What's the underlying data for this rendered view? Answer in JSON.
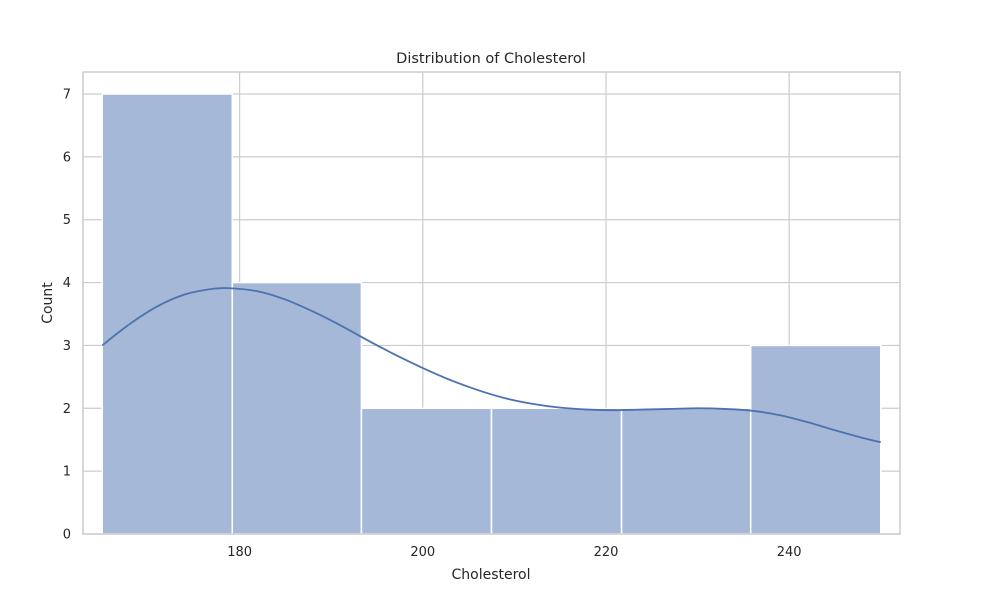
{
  "chart_data": {
    "type": "bar",
    "title": "Distribution of Cholesterol",
    "xlabel": "Cholesterol",
    "ylabel": "Count",
    "xlim": [
      162.9,
      252.1
    ],
    "ylim": [
      0,
      7.35
    ],
    "xticks": [
      180,
      200,
      220,
      240
    ],
    "yticks": [
      0,
      1,
      2,
      3,
      4,
      5,
      6,
      7
    ],
    "grid": true,
    "bins": [
      {
        "start": 165.0,
        "end": 179.2,
        "count": 7
      },
      {
        "start": 179.2,
        "end": 193.3,
        "count": 4
      },
      {
        "start": 193.3,
        "end": 207.5,
        "count": 2
      },
      {
        "start": 207.5,
        "end": 221.7,
        "count": 2
      },
      {
        "start": 221.7,
        "end": 235.8,
        "count": 2
      },
      {
        "start": 235.8,
        "end": 250.0,
        "count": 3
      }
    ],
    "kde": {
      "x": [
        165,
        168,
        171,
        174,
        177,
        179,
        182,
        185,
        188,
        191,
        194,
        197,
        200,
        203,
        206,
        209,
        212,
        215,
        218,
        221,
        224,
        227,
        230,
        233,
        236,
        239,
        242,
        245,
        248,
        250
      ],
      "y": [
        3.0,
        3.34,
        3.62,
        3.81,
        3.9,
        3.91,
        3.86,
        3.73,
        3.54,
        3.32,
        3.08,
        2.85,
        2.64,
        2.45,
        2.29,
        2.16,
        2.07,
        2.01,
        1.98,
        1.97,
        1.98,
        1.99,
        2.0,
        1.99,
        1.96,
        1.89,
        1.78,
        1.65,
        1.53,
        1.46
      ]
    },
    "colors": {
      "bar": "#a5b8d8",
      "line": "#4c72b0"
    }
  }
}
